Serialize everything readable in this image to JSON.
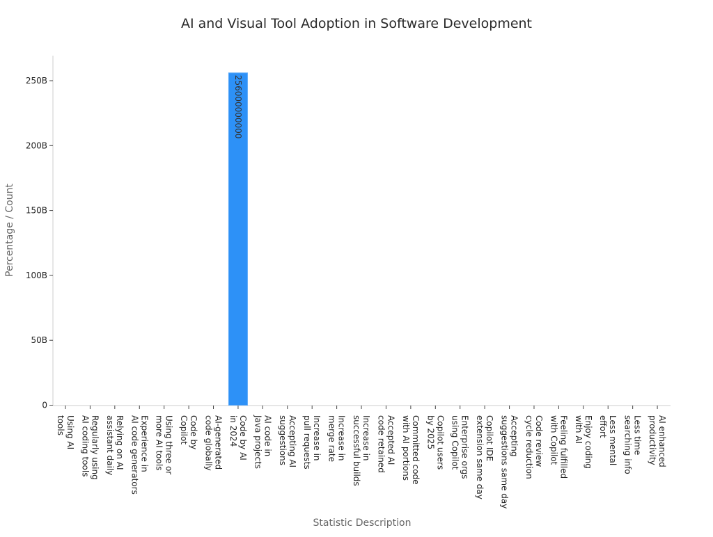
{
  "chart_data": {
    "type": "bar",
    "title": "AI and Visual Tool Adoption in Software Development",
    "xlabel": "Statistic Description",
    "ylabel": "Percentage / Count",
    "ylim": [
      0,
      270000000000
    ],
    "yticks": [
      0,
      50000000000,
      100000000000,
      150000000000,
      200000000000,
      250000000000
    ],
    "ytick_labels": [
      "0",
      "50B",
      "100B",
      "150B",
      "200B",
      "250B"
    ],
    "grid": false,
    "bar_color": "#2d91f7",
    "categories": [
      [
        "Using AI",
        "tools"
      ],
      [
        "Regularly using",
        "AI coding tools"
      ],
      [
        "Relying on AI",
        "assistant daily"
      ],
      [
        "Experience in",
        "AI code generators"
      ],
      [
        "Using three or",
        "more AI tools"
      ],
      [
        "Code by",
        "Copilot"
      ],
      [
        "AI-generated",
        "code globally"
      ],
      [
        "Code by AI",
        "in 2024"
      ],
      [
        "AI code in",
        "Java projects"
      ],
      [
        "Accepting AI",
        "suggestions"
      ],
      [
        "Increase in",
        "pull requests"
      ],
      [
        "Increase in",
        "merge rate"
      ],
      [
        "Increase in",
        "successful builds"
      ],
      [
        "Accepted AI",
        "code retained"
      ],
      [
        "Committed code",
        "with AI portions"
      ],
      [
        "Copilot users",
        "by 2025"
      ],
      [
        "Enterprise orgs",
        "using Copilot"
      ],
      [
        "Copilot IDE",
        "extension same day"
      ],
      [
        "Accepting",
        "suggestions same day"
      ],
      [
        "Code review",
        "cycle reduction"
      ],
      [
        "Feeling fulfilled",
        "with Copilot"
      ],
      [
        "Enjoy coding",
        "with AI"
      ],
      [
        "Less mental",
        "effort"
      ],
      [
        "Less time",
        "searching info"
      ],
      [
        "AI enhanced",
        "productivity"
      ]
    ],
    "values": [
      0,
      0,
      0,
      0,
      0,
      0,
      0,
      256000000000,
      0,
      0,
      0,
      0,
      0,
      0,
      0,
      0,
      0,
      0,
      0,
      0,
      0,
      0,
      0,
      0,
      0
    ],
    "data_labels": {
      "7": "256000000000"
    }
  }
}
